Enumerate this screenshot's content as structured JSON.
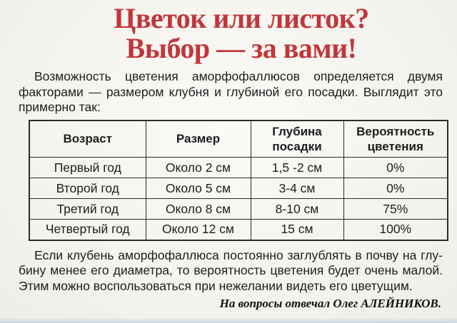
{
  "title": {
    "line1": "Цветок или листок?",
    "line2": "Выбор — за вами!"
  },
  "colors": {
    "title_red": "#c23539",
    "text": "#1d1d1d",
    "table_border": "#2b2b2b",
    "paper": "#f5f3ee"
  },
  "intro": {
    "lines": [
      "Возможность цветения аморфофаллюсов определяется двумя",
      "факторами — размером клубня и глубиной его посадки. Выглядит это",
      "примерно так:"
    ]
  },
  "table": {
    "headers": [
      "Возраст",
      "Размер",
      "Глубина посадки",
      "Вероятность цветения"
    ],
    "rows": [
      [
        "Первый год",
        "Около 2 см",
        "1,5 -2 см",
        "0%"
      ],
      [
        "Второй год",
        "Около 5 см",
        "3-4 см",
        "0%"
      ],
      [
        "Третий год",
        "Около 8 см",
        "8-10 см",
        "75%"
      ],
      [
        "Четвертый год",
        "Около 12 см",
        "15 см",
        "100%"
      ]
    ]
  },
  "outro": {
    "lines": [
      "Если клубень аморфофаллюса постоянно заглублять в почву на глу-",
      "бину менее его диаметра, то вероятность цветения будет очень малой.",
      "Этим можно воспользоваться при нежелании видеть его цветущим."
    ]
  },
  "signature": "На вопросы отвечал Олег АЛЕЙНИКОВ."
}
